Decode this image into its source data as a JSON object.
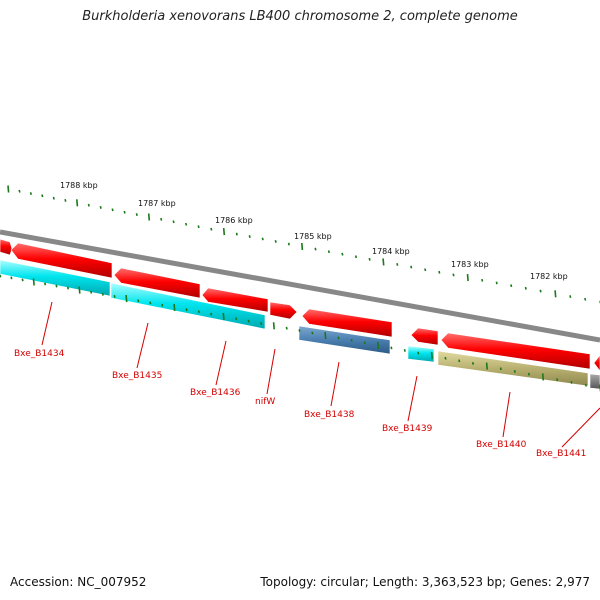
{
  "title": "Burkholderia xenovorans LB400 chromosome 2, complete genome",
  "footer": {
    "accession": "Accession: NC_007952",
    "summary": "Topology: circular; Length: 3,363,523 bp; Genes: 2,977"
  },
  "colors": {
    "backbone": "#808080",
    "tick": "#1a7a1a",
    "forward_gene": "#ff0000",
    "reverse_gene": "#00e5ee",
    "reverse_gene_alt": "#4a7fb0",
    "reverse_gene_olive": "#b8b070",
    "label": "#d40000"
  },
  "ruler": {
    "labels": [
      "1788 kbp",
      "1787 kbp",
      "1786 kbp",
      "1785 kbp",
      "1784 kbp",
      "1783 kbp",
      "1782 kbp"
    ]
  },
  "gene_labels": [
    "Bxe_B1434",
    "Bxe_B1435",
    "Bxe_B1436",
    "nifW",
    "Bxe_B1438",
    "Bxe_B1439",
    "Bxe_B1440",
    "Bxe_B1441"
  ]
}
